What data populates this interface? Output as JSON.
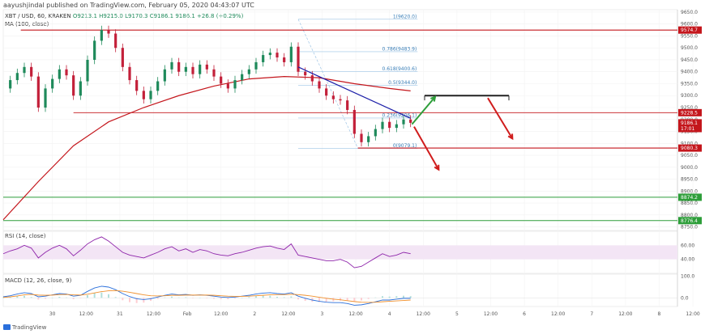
{
  "header": {
    "publisher": "aayushjindal published on TradingView.com, February 05, 2020 04:43:07 UTC",
    "symbol": "XBT / USD, 60, KRAKEN",
    "ohlc": "O9213.1  H9215.0  L9170.3  C9186.1",
    "change": "9186.1  +26.8 (+0.29%)",
    "ma_label": "MA (100, close)",
    "rsi_label": "RSI (14, close)",
    "macd_label": "MACD (12, 26, close, 9)",
    "footer": "TradingView"
  },
  "colors": {
    "up": "#1f8a5b",
    "down": "#c3203a",
    "ma": "#c4161c",
    "resistance": "#c4161c",
    "support": "#2e9e3a",
    "trendline": "#1c1fa8",
    "fib": "#9ec5e6",
    "rsi": "#8e24aa",
    "rsi_band": "#f3e5f5",
    "macd": "#2a6fdb",
    "signal": "#f0902c",
    "arrow_green": "#2e9e3a",
    "arrow_red": "#d01c1c"
  },
  "chart_data": [
    {
      "type": "line",
      "name": "price",
      "x_ticks": [
        "30",
        "12:00",
        "31",
        "12:00",
        "Feb",
        "12:00",
        "2",
        "12:00",
        "3",
        "12:00",
        "4",
        "12:00",
        "5",
        "12:00",
        "6",
        "12:00",
        "7",
        "12:00",
        "8",
        "12:00"
      ],
      "y_ticks": [
        9650.0,
        9600.0,
        9550.0,
        9500.0,
        9450.0,
        9400.0,
        9350.0,
        9300.0,
        9250.0,
        9200.0,
        9150.0,
        9100.0,
        9050.0,
        9000.0,
        8950.0,
        8900.0,
        8850.0,
        8800.0,
        8750.0
      ],
      "ylim": [
        8735,
        9660
      ],
      "price_series": [
        [
          0,
          9330
        ],
        [
          1,
          9365
        ],
        [
          2,
          9395
        ],
        [
          3,
          9420
        ],
        [
          4,
          9380
        ],
        [
          5,
          9250
        ],
        [
          6,
          9330
        ],
        [
          7,
          9370
        ],
        [
          8,
          9410
        ],
        [
          9,
          9385
        ],
        [
          10,
          9300
        ],
        [
          11,
          9360
        ],
        [
          12,
          9450
        ],
        [
          13,
          9530
        ],
        [
          14,
          9575
        ],
        [
          15,
          9560
        ],
        [
          16,
          9500
        ],
        [
          17,
          9420
        ],
        [
          18,
          9365
        ],
        [
          19,
          9320
        ],
        [
          20,
          9285
        ],
        [
          21,
          9320
        ],
        [
          22,
          9360
        ],
        [
          23,
          9410
        ],
        [
          24,
          9440
        ],
        [
          25,
          9400
        ],
        [
          26,
          9420
        ],
        [
          27,
          9390
        ],
        [
          28,
          9430
        ],
        [
          29,
          9410
        ],
        [
          30,
          9380
        ],
        [
          31,
          9350
        ],
        [
          32,
          9330
        ],
        [
          33,
          9365
        ],
        [
          34,
          9390
        ],
        [
          35,
          9410
        ],
        [
          36,
          9440
        ],
        [
          37,
          9470
        ],
        [
          38,
          9480
        ],
        [
          39,
          9460
        ],
        [
          40,
          9440
        ],
        [
          41,
          9505
        ],
        [
          42,
          9400
        ],
        [
          43,
          9385
        ],
        [
          44,
          9360
        ],
        [
          45,
          9330
        ],
        [
          46,
          9300
        ],
        [
          47,
          9285
        ],
        [
          48,
          9280
        ],
        [
          49,
          9240
        ],
        [
          50,
          9140
        ],
        [
          51,
          9105
        ],
        [
          52,
          9130
        ],
        [
          53,
          9160
        ],
        [
          54,
          9190
        ],
        [
          55,
          9165
        ],
        [
          56,
          9180
        ],
        [
          57,
          9200
        ],
        [
          58,
          9186
        ]
      ],
      "ma_series": [
        [
          0,
          8780
        ],
        [
          5,
          8940
        ],
        [
          10,
          9090
        ],
        [
          15,
          9190
        ],
        [
          20,
          9250
        ],
        [
          25,
          9300
        ],
        [
          30,
          9340
        ],
        [
          35,
          9370
        ],
        [
          40,
          9380
        ],
        [
          45,
          9375
        ],
        [
          50,
          9350
        ],
        [
          55,
          9330
        ],
        [
          58,
          9320
        ]
      ],
      "horizontal_levels": [
        {
          "label": "9574.7",
          "price": 9574.7,
          "kind": "resistance",
          "tagColor": "#c4161c"
        },
        {
          "label": "9228.5",
          "price": 9228.5,
          "kind": "resistance",
          "tagColor": "#c4161c"
        },
        {
          "label": "9186.1",
          "price": 9186.1,
          "kind": "current",
          "tagColor": "#c4161c"
        },
        {
          "label": "17:01",
          "price": 9162,
          "kind": "timer",
          "tagColor": "#c4161c"
        },
        {
          "label": "9080.3",
          "price": 9080.3,
          "kind": "support-target",
          "tagColor": "#c4161c"
        },
        {
          "label": "8874.2",
          "price": 8874.2,
          "kind": "support",
          "tagColor": "#2e9e3a"
        },
        {
          "label": "8776.4",
          "price": 8776.4,
          "kind": "support",
          "tagColor": "#2e9e3a"
        }
      ],
      "fib_levels": [
        {
          "label": "1(9620.0)",
          "price": 9620.0
        },
        {
          "label": "0.786(9483.9)",
          "price": 9483.9
        },
        {
          "label": "0.618(9400.6)",
          "price": 9400.6
        },
        {
          "label": "0.5(9344.0)",
          "price": 9344.0
        },
        {
          "label": "0.236(9206.1)",
          "price": 9206.1
        },
        {
          "label": "0(9079.1)",
          "price": 9079.1
        }
      ],
      "trendline": {
        "from": [
          42,
          9420
        ],
        "to": [
          58,
          9205
        ]
      },
      "grid": true
    },
    {
      "type": "line",
      "name": "RSI",
      "y_ticks": [
        60.0,
        40.0
      ],
      "ylim": [
        20,
        80
      ],
      "band": [
        40,
        60
      ],
      "values": [
        48,
        52,
        55,
        60,
        56,
        42,
        50,
        56,
        60,
        55,
        45,
        53,
        62,
        68,
        72,
        66,
        58,
        50,
        46,
        44,
        42,
        46,
        50,
        55,
        58,
        52,
        55,
        50,
        54,
        52,
        48,
        46,
        45,
        48,
        50,
        53,
        56,
        58,
        59,
        56,
        54,
        62,
        46,
        44,
        42,
        40,
        38,
        38,
        40,
        36,
        28,
        30,
        36,
        42,
        48,
        44,
        46,
        50,
        48
      ]
    },
    {
      "type": "line",
      "name": "MACD",
      "y_ticks": [
        100.0,
        0.0
      ],
      "ylim": [
        -40,
        110
      ],
      "macd": [
        5,
        10,
        18,
        24,
        20,
        5,
        8,
        14,
        20,
        18,
        8,
        12,
        30,
        46,
        54,
        50,
        38,
        20,
        6,
        -4,
        -8,
        -4,
        4,
        12,
        18,
        14,
        16,
        12,
        14,
        12,
        8,
        4,
        2,
        4,
        8,
        12,
        18,
        22,
        24,
        20,
        18,
        24,
        8,
        -2,
        -10,
        -16,
        -20,
        -22,
        -22,
        -26,
        -34,
        -32,
        -26,
        -18,
        -10,
        -10,
        -6,
        -2,
        -2
      ],
      "signal": [
        2,
        5,
        9,
        14,
        16,
        13,
        12,
        13,
        15,
        16,
        14,
        13,
        17,
        23,
        29,
        33,
        34,
        31,
        26,
        20,
        14,
        10,
        9,
        10,
        12,
        12,
        13,
        13,
        13,
        13,
        12,
        10,
        8,
        7,
        7,
        8,
        10,
        12,
        14,
        15,
        15,
        17,
        15,
        12,
        8,
        3,
        -2,
        -6,
        -9,
        -13,
        -17,
        -20,
        -21,
        -20,
        -18,
        -16,
        -14,
        -12,
        -10
      ]
    }
  ]
}
